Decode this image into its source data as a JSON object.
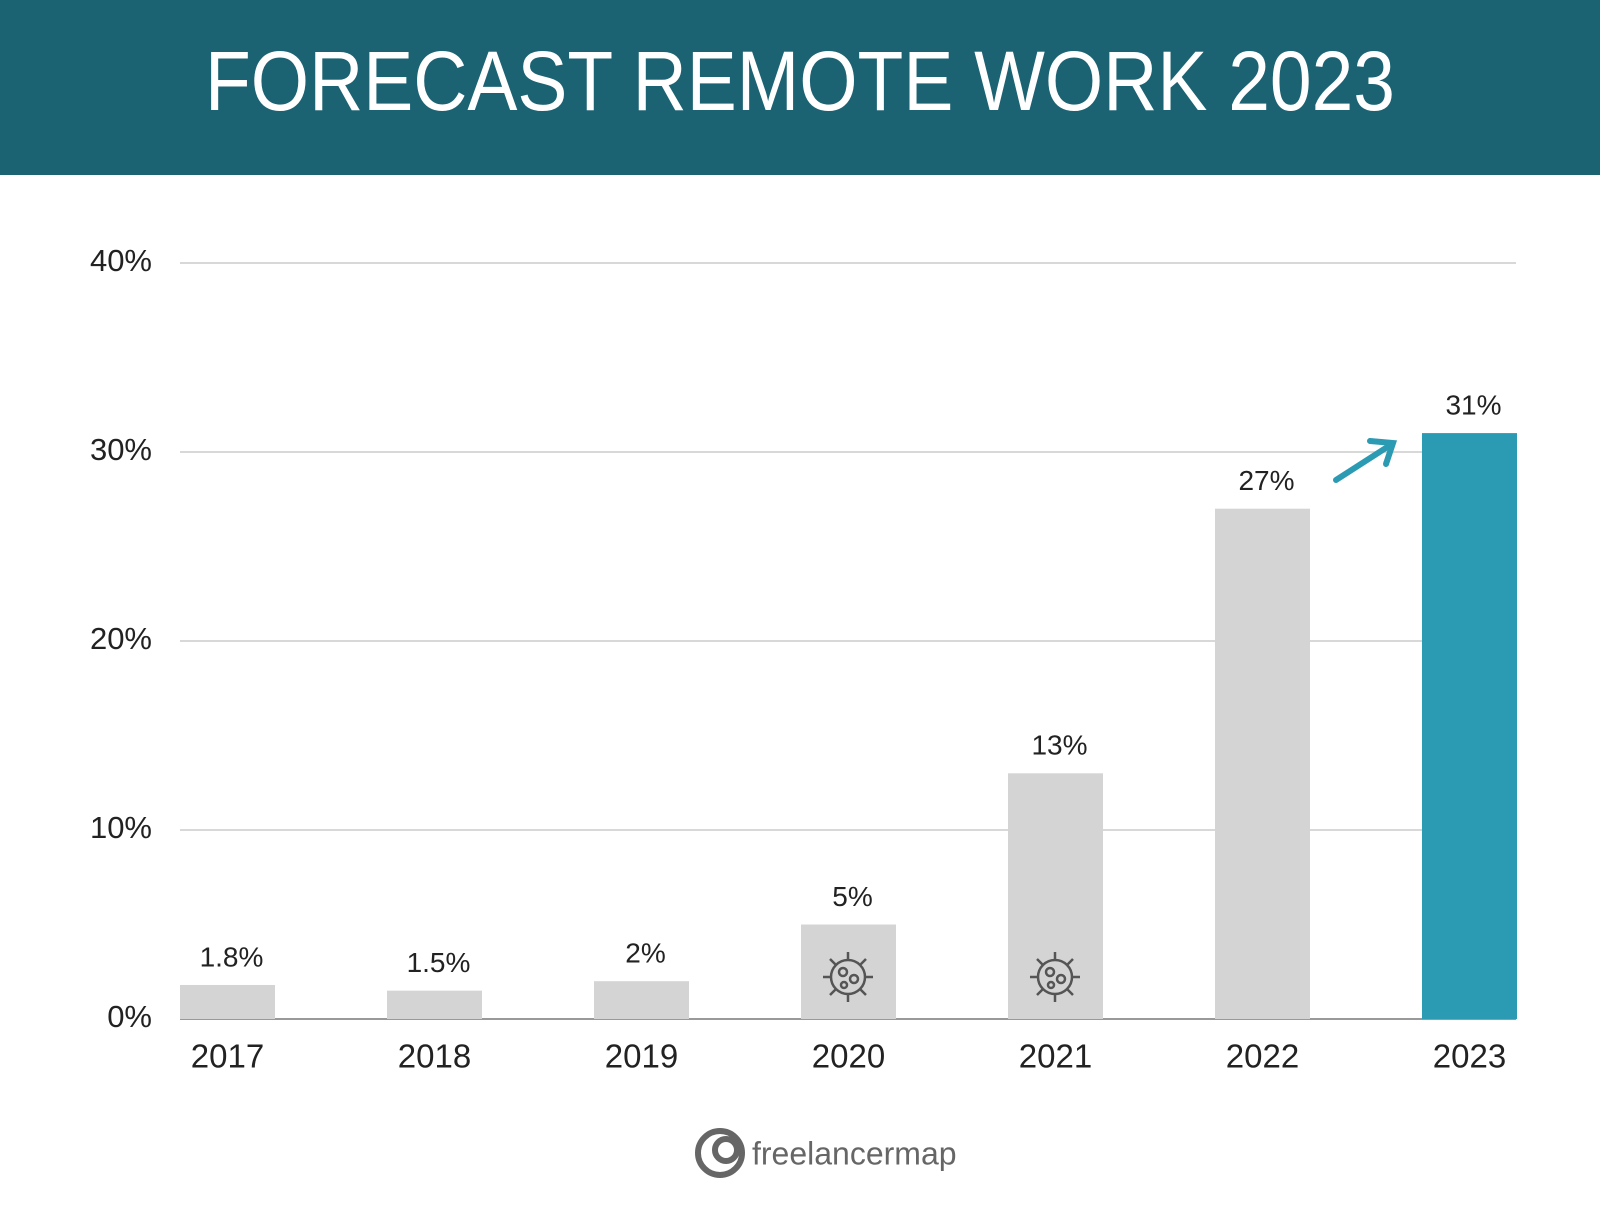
{
  "chart_data": {
    "type": "bar",
    "title": "FORECAST REMOTE WORK 2023",
    "categories": [
      "2017",
      "2018",
      "2019",
      "2020",
      "2021",
      "2022",
      "2023"
    ],
    "values": [
      1.8,
      1.5,
      2,
      5,
      13,
      27,
      31
    ],
    "value_labels": [
      "1.8%",
      "1.5%",
      "2%",
      "5%",
      "13%",
      "27%",
      "31%"
    ],
    "colors": [
      "#d4d4d4",
      "#d4d4d4",
      "#d4d4d4",
      "#d4d4d4",
      "#d4d4d4",
      "#d4d4d4",
      "#2b9ab3"
    ],
    "ylim": [
      0,
      40
    ],
    "yticks": [
      {
        "value": 0,
        "label": "0%"
      },
      {
        "value": 10,
        "label": "10%"
      },
      {
        "value": 20,
        "label": "20%"
      },
      {
        "value": 30,
        "label": "30%"
      },
      {
        "value": 40,
        "label": "40%"
      }
    ],
    "grid": true,
    "logo": "freelancermap"
  }
}
